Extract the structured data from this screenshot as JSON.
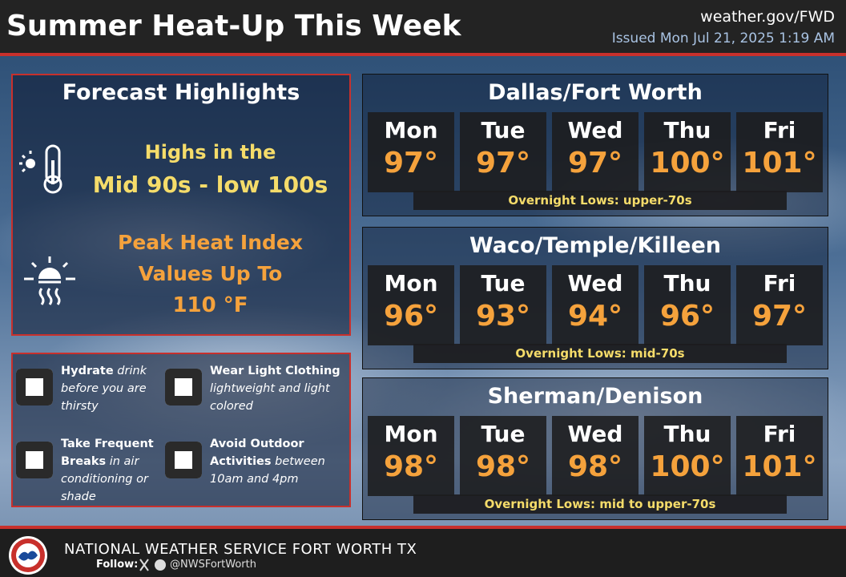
{
  "header": {
    "title": "Summer Heat-Up This Week",
    "website": "weather.gov/FWD",
    "issued": "Issued Mon Jul 21, 2025 1:19 AM"
  },
  "highlights": {
    "title": "Forecast Highlights",
    "highs_line1": "Highs in the",
    "highs_line2": "Mid 90s - low 100s",
    "heat_line1": "Peak Heat Index",
    "heat_line2": "Values Up To",
    "heat_line3": "110 °F"
  },
  "tips": [
    {
      "title": "Hydrate",
      "detail": "drink before you are thirsty"
    },
    {
      "title": "Wear Light Clothing",
      "detail": "lightweight and light colored"
    },
    {
      "title": "Take Frequent Breaks",
      "detail": "in air conditioning or shade"
    },
    {
      "title": "Avoid Outdoor Activities",
      "detail": "between 10am and 4pm"
    }
  ],
  "cities": [
    {
      "name": "Dallas/Fort Worth",
      "days": [
        {
          "day": "Mon",
          "temp": "97°"
        },
        {
          "day": "Tue",
          "temp": "97°"
        },
        {
          "day": "Wed",
          "temp": "97°"
        },
        {
          "day": "Thu",
          "temp": "100°"
        },
        {
          "day": "Fri",
          "temp": "101°"
        }
      ],
      "lows": "Overnight Lows: upper-70s"
    },
    {
      "name": "Waco/Temple/Killeen",
      "days": [
        {
          "day": "Mon",
          "temp": "96°"
        },
        {
          "day": "Tue",
          "temp": "93°"
        },
        {
          "day": "Wed",
          "temp": "94°"
        },
        {
          "day": "Thu",
          "temp": "96°"
        },
        {
          "day": "Fri",
          "temp": "97°"
        }
      ],
      "lows": "Overnight Lows: mid-70s"
    },
    {
      "name": "Sherman/Denison",
      "days": [
        {
          "day": "Mon",
          "temp": "98°"
        },
        {
          "day": "Tue",
          "temp": "98°"
        },
        {
          "day": "Wed",
          "temp": "98°"
        },
        {
          "day": "Thu",
          "temp": "100°"
        },
        {
          "day": "Fri",
          "temp": "101°"
        }
      ],
      "lows": "Overnight Lows: mid to upper-70s"
    }
  ],
  "footer": {
    "agency": "NATIONAL WEATHER SERVICE FORT WORTH TX",
    "follow": "Follow:",
    "handle": "@NWSFortWorth"
  }
}
